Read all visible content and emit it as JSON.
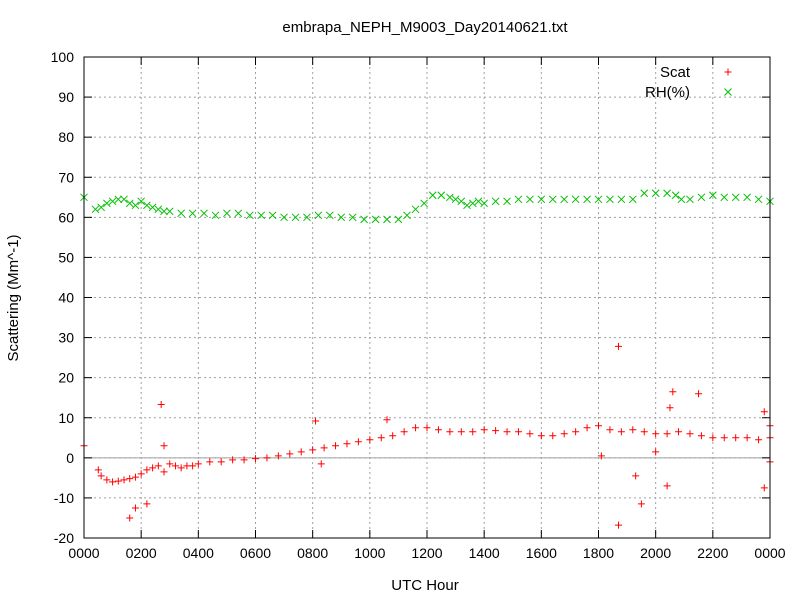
{
  "chart_data": {
    "type": "scatter",
    "title": "embrapa_NEPH_M9003_Day20140621.txt",
    "xlabel": "UTC Hour",
    "ylabel": "Scattering (Mm^-1)",
    "xlim": [
      0,
      24
    ],
    "ylim": [
      -20,
      100
    ],
    "grid": true,
    "legend_position": "top-right",
    "zero_line": true,
    "x_ticks": [
      {
        "value": 0,
        "label": "0000"
      },
      {
        "value": 2,
        "label": "0200"
      },
      {
        "value": 4,
        "label": "0400"
      },
      {
        "value": 6,
        "label": "0600"
      },
      {
        "value": 8,
        "label": "0800"
      },
      {
        "value": 10,
        "label": "1000"
      },
      {
        "value": 12,
        "label": "1200"
      },
      {
        "value": 14,
        "label": "1400"
      },
      {
        "value": 16,
        "label": "1600"
      },
      {
        "value": 18,
        "label": "1800"
      },
      {
        "value": 20,
        "label": "2000"
      },
      {
        "value": 22,
        "label": "2200"
      },
      {
        "value": 24,
        "label": "0000"
      }
    ],
    "y_ticks": [
      -20,
      -10,
      0,
      10,
      20,
      30,
      40,
      50,
      60,
      70,
      80,
      90,
      100
    ],
    "series": [
      {
        "name": "Scat",
        "color": "#ff0000",
        "marker": "plus",
        "points": [
          [
            0.0,
            3.0
          ],
          [
            0.5,
            -3.0
          ],
          [
            0.6,
            -4.5
          ],
          [
            0.8,
            -5.5
          ],
          [
            1.0,
            -6.0
          ],
          [
            1.2,
            -5.8
          ],
          [
            1.4,
            -5.5
          ],
          [
            1.6,
            -5.2
          ],
          [
            1.8,
            -4.8
          ],
          [
            2.0,
            -4.0
          ],
          [
            2.2,
            -3.0
          ],
          [
            2.4,
            -2.5
          ],
          [
            2.6,
            -2.0
          ],
          [
            2.8,
            -3.5
          ],
          [
            3.0,
            -1.5
          ],
          [
            3.2,
            -2.0
          ],
          [
            3.4,
            -2.5
          ],
          [
            3.6,
            -2.0
          ],
          [
            3.8,
            -2.0
          ],
          [
            4.0,
            -1.5
          ],
          [
            4.4,
            -1.0
          ],
          [
            4.8,
            -1.0
          ],
          [
            5.2,
            -0.5
          ],
          [
            5.6,
            -0.5
          ],
          [
            6.0,
            -0.2
          ],
          [
            6.4,
            0.0
          ],
          [
            6.8,
            0.5
          ],
          [
            7.2,
            1.0
          ],
          [
            7.6,
            1.5
          ],
          [
            8.0,
            2.0
          ],
          [
            8.4,
            2.5
          ],
          [
            8.8,
            3.0
          ],
          [
            9.2,
            3.5
          ],
          [
            9.6,
            4.0
          ],
          [
            10.0,
            4.5
          ],
          [
            10.4,
            5.0
          ],
          [
            10.8,
            5.5
          ],
          [
            11.2,
            6.5
          ],
          [
            11.6,
            7.5
          ],
          [
            12.0,
            7.5
          ],
          [
            12.4,
            7.0
          ],
          [
            12.8,
            6.5
          ],
          [
            13.2,
            6.5
          ],
          [
            13.6,
            6.5
          ],
          [
            14.0,
            7.0
          ],
          [
            14.4,
            6.8
          ],
          [
            14.8,
            6.5
          ],
          [
            15.2,
            6.5
          ],
          [
            15.6,
            6.0
          ],
          [
            16.0,
            5.5
          ],
          [
            16.4,
            5.5
          ],
          [
            16.8,
            6.0
          ],
          [
            17.2,
            6.5
          ],
          [
            17.6,
            7.5
          ],
          [
            18.0,
            8.0
          ],
          [
            18.4,
            7.0
          ],
          [
            18.8,
            6.5
          ],
          [
            19.2,
            7.0
          ],
          [
            19.6,
            6.5
          ],
          [
            20.0,
            6.0
          ],
          [
            20.4,
            6.0
          ],
          [
            20.8,
            6.5
          ],
          [
            21.2,
            6.0
          ],
          [
            21.6,
            5.5
          ],
          [
            22.0,
            5.0
          ],
          [
            22.4,
            5.0
          ],
          [
            22.8,
            5.0
          ],
          [
            23.2,
            5.0
          ],
          [
            23.6,
            4.5
          ],
          [
            24.0,
            5.0
          ],
          [
            1.6,
            -15.0
          ],
          [
            1.8,
            -12.5
          ],
          [
            2.2,
            -11.5
          ],
          [
            2.7,
            13.3
          ],
          [
            2.8,
            3.0
          ],
          [
            8.1,
            9.2
          ],
          [
            8.3,
            -1.5
          ],
          [
            10.6,
            9.5
          ],
          [
            18.1,
            0.5
          ],
          [
            18.7,
            27.8
          ],
          [
            18.7,
            -16.8
          ],
          [
            19.3,
            -4.5
          ],
          [
            19.5,
            -11.5
          ],
          [
            20.0,
            1.5
          ],
          [
            20.4,
            -7.0
          ],
          [
            20.5,
            12.5
          ],
          [
            20.6,
            16.5
          ],
          [
            21.5,
            16.0
          ],
          [
            23.8,
            11.5
          ],
          [
            23.8,
            -7.5
          ],
          [
            24.0,
            -1.0
          ],
          [
            24.0,
            8.0
          ]
        ]
      },
      {
        "name": "RH(%)",
        "color": "#00c000",
        "marker": "cross",
        "points": [
          [
            0.0,
            65.0
          ],
          [
            0.4,
            62.0
          ],
          [
            0.6,
            62.5
          ],
          [
            0.8,
            63.5
          ],
          [
            1.0,
            64.0
          ],
          [
            1.2,
            64.5
          ],
          [
            1.4,
            64.5
          ],
          [
            1.6,
            63.5
          ],
          [
            1.8,
            63.0
          ],
          [
            2.0,
            64.0
          ],
          [
            2.2,
            63.0
          ],
          [
            2.4,
            62.5
          ],
          [
            2.6,
            62.0
          ],
          [
            2.8,
            61.5
          ],
          [
            3.0,
            61.5
          ],
          [
            3.4,
            61.0
          ],
          [
            3.8,
            61.0
          ],
          [
            4.2,
            61.0
          ],
          [
            4.6,
            60.5
          ],
          [
            5.0,
            61.0
          ],
          [
            5.4,
            61.0
          ],
          [
            5.8,
            60.5
          ],
          [
            6.2,
            60.5
          ],
          [
            6.6,
            60.5
          ],
          [
            7.0,
            60.0
          ],
          [
            7.4,
            60.0
          ],
          [
            7.8,
            60.0
          ],
          [
            8.2,
            60.5
          ],
          [
            8.6,
            60.5
          ],
          [
            9.0,
            60.0
          ],
          [
            9.4,
            60.0
          ],
          [
            9.8,
            59.5
          ],
          [
            10.2,
            59.5
          ],
          [
            10.6,
            59.5
          ],
          [
            11.0,
            59.5
          ],
          [
            11.3,
            60.5
          ],
          [
            11.6,
            62.0
          ],
          [
            11.9,
            63.5
          ],
          [
            12.2,
            65.5
          ],
          [
            12.5,
            65.5
          ],
          [
            12.8,
            65.0
          ],
          [
            13.0,
            64.5
          ],
          [
            13.2,
            64.0
          ],
          [
            13.4,
            63.0
          ],
          [
            13.6,
            63.5
          ],
          [
            13.8,
            64.0
          ],
          [
            14.0,
            63.5
          ],
          [
            14.4,
            64.0
          ],
          [
            14.8,
            64.0
          ],
          [
            15.2,
            64.5
          ],
          [
            15.6,
            64.5
          ],
          [
            16.0,
            64.5
          ],
          [
            16.4,
            64.5
          ],
          [
            16.8,
            64.5
          ],
          [
            17.2,
            64.5
          ],
          [
            17.6,
            64.5
          ],
          [
            18.0,
            64.5
          ],
          [
            18.4,
            64.5
          ],
          [
            18.8,
            64.5
          ],
          [
            19.2,
            64.5
          ],
          [
            19.6,
            66.0
          ],
          [
            20.0,
            66.0
          ],
          [
            20.4,
            66.0
          ],
          [
            20.7,
            65.5
          ],
          [
            20.9,
            64.5
          ],
          [
            21.2,
            64.5
          ],
          [
            21.6,
            65.0
          ],
          [
            22.0,
            65.5
          ],
          [
            22.4,
            65.0
          ],
          [
            22.8,
            65.0
          ],
          [
            23.2,
            65.0
          ],
          [
            23.6,
            64.5
          ],
          [
            24.0,
            64.0
          ]
        ]
      }
    ]
  }
}
